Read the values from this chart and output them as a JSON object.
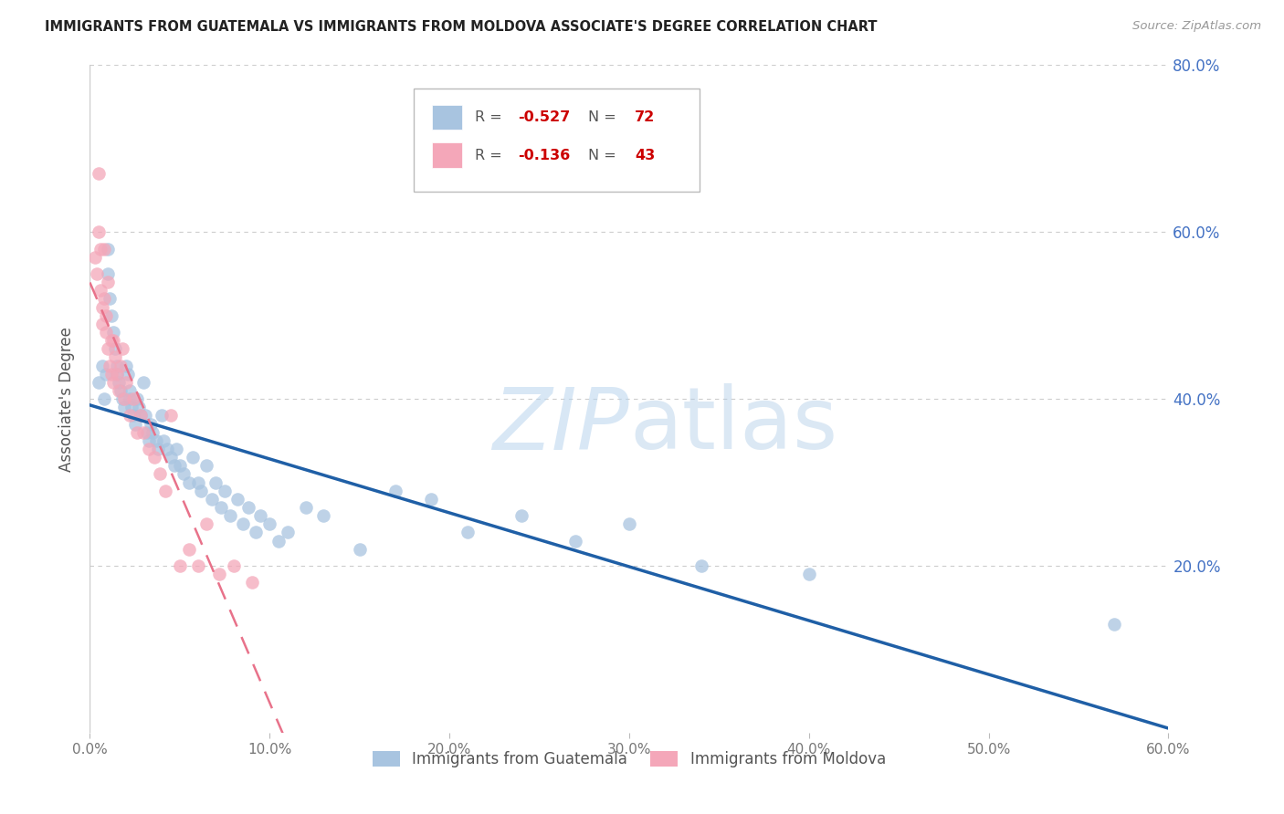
{
  "title": "IMMIGRANTS FROM GUATEMALA VS IMMIGRANTS FROM MOLDOVA ASSOCIATE'S DEGREE CORRELATION CHART",
  "source": "Source: ZipAtlas.com",
  "ylabel": "Associate's Degree",
  "right_ylabel_color": "#4472c4",
  "watermark_zip": "ZIP",
  "watermark_atlas": "atlas",
  "xlim": [
    0.0,
    0.6
  ],
  "ylim": [
    0.0,
    0.8
  ],
  "xticks": [
    0.0,
    0.1,
    0.2,
    0.3,
    0.4,
    0.5,
    0.6
  ],
  "yticks_right": [
    0.2,
    0.4,
    0.6,
    0.8
  ],
  "grid_color": "#cccccc",
  "background_color": "#ffffff",
  "guatemala_color": "#a8c4e0",
  "moldova_color": "#f4a7b9",
  "guatemala_line_color": "#1f5fa6",
  "moldova_line_color": "#e8728a",
  "guatemala_r": -0.527,
  "guatemala_n": 72,
  "moldova_r": -0.136,
  "moldova_n": 43,
  "guatemala_x": [
    0.005,
    0.007,
    0.008,
    0.009,
    0.01,
    0.01,
    0.011,
    0.012,
    0.013,
    0.014,
    0.015,
    0.015,
    0.016,
    0.017,
    0.018,
    0.019,
    0.02,
    0.021,
    0.022,
    0.022,
    0.023,
    0.024,
    0.025,
    0.026,
    0.027,
    0.028,
    0.03,
    0.031,
    0.032,
    0.033,
    0.034,
    0.035,
    0.037,
    0.038,
    0.04,
    0.041,
    0.043,
    0.045,
    0.047,
    0.048,
    0.05,
    0.052,
    0.055,
    0.057,
    0.06,
    0.062,
    0.065,
    0.068,
    0.07,
    0.073,
    0.075,
    0.078,
    0.082,
    0.085,
    0.088,
    0.092,
    0.095,
    0.1,
    0.105,
    0.11,
    0.12,
    0.13,
    0.15,
    0.17,
    0.19,
    0.21,
    0.24,
    0.27,
    0.3,
    0.34,
    0.4,
    0.57
  ],
  "guatemala_y": [
    0.42,
    0.44,
    0.4,
    0.43,
    0.58,
    0.55,
    0.52,
    0.5,
    0.48,
    0.46,
    0.44,
    0.43,
    0.42,
    0.41,
    0.4,
    0.39,
    0.44,
    0.43,
    0.41,
    0.4,
    0.39,
    0.38,
    0.37,
    0.4,
    0.39,
    0.38,
    0.42,
    0.38,
    0.36,
    0.35,
    0.37,
    0.36,
    0.35,
    0.34,
    0.38,
    0.35,
    0.34,
    0.33,
    0.32,
    0.34,
    0.32,
    0.31,
    0.3,
    0.33,
    0.3,
    0.29,
    0.32,
    0.28,
    0.3,
    0.27,
    0.29,
    0.26,
    0.28,
    0.25,
    0.27,
    0.24,
    0.26,
    0.25,
    0.23,
    0.24,
    0.27,
    0.26,
    0.22,
    0.29,
    0.28,
    0.24,
    0.26,
    0.23,
    0.25,
    0.2,
    0.19,
    0.13
  ],
  "moldova_x": [
    0.003,
    0.004,
    0.005,
    0.005,
    0.006,
    0.006,
    0.007,
    0.007,
    0.008,
    0.008,
    0.009,
    0.009,
    0.01,
    0.01,
    0.011,
    0.012,
    0.012,
    0.013,
    0.013,
    0.014,
    0.015,
    0.016,
    0.017,
    0.018,
    0.019,
    0.02,
    0.022,
    0.024,
    0.026,
    0.028,
    0.03,
    0.033,
    0.036,
    0.039,
    0.042,
    0.045,
    0.05,
    0.055,
    0.06,
    0.065,
    0.072,
    0.08,
    0.09
  ],
  "moldova_y": [
    0.57,
    0.55,
    0.67,
    0.6,
    0.58,
    0.53,
    0.51,
    0.49,
    0.58,
    0.52,
    0.5,
    0.48,
    0.54,
    0.46,
    0.44,
    0.47,
    0.43,
    0.47,
    0.42,
    0.45,
    0.43,
    0.41,
    0.44,
    0.46,
    0.4,
    0.42,
    0.38,
    0.4,
    0.36,
    0.38,
    0.36,
    0.34,
    0.33,
    0.31,
    0.29,
    0.38,
    0.2,
    0.22,
    0.2,
    0.25,
    0.19,
    0.2,
    0.18
  ],
  "legend_r_color": "#cc0000",
  "legend_n_color": "#cc0000",
  "legend_text_color": "#555555",
  "bottom_legend_color": "#555555"
}
